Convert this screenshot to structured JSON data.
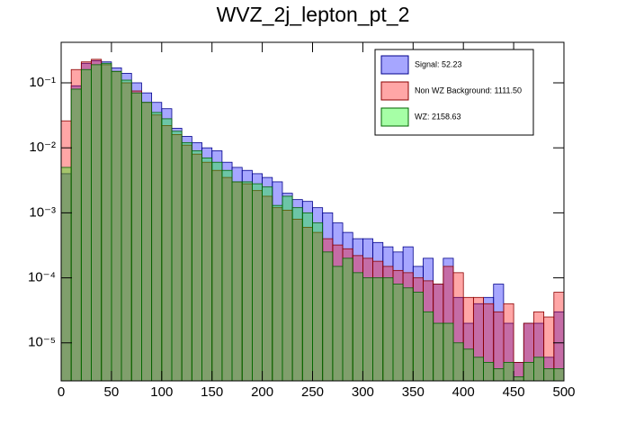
{
  "chart_data": {
    "type": "histogram",
    "title": "WVZ_2j_lepton_pt_2",
    "bins": [
      0,
      10,
      20,
      30,
      40,
      50,
      60,
      70,
      80,
      90,
      100,
      110,
      120,
      130,
      140,
      150,
      160,
      170,
      180,
      190,
      200,
      210,
      220,
      230,
      240,
      250,
      260,
      270,
      280,
      290,
      300,
      310,
      320,
      330,
      340,
      350,
      360,
      370,
      380,
      390,
      400,
      410,
      420,
      430,
      440,
      450,
      460,
      470,
      480,
      490,
      500
    ],
    "log_y": true,
    "xlim": [
      0,
      500
    ],
    "xticks": [
      0,
      50,
      100,
      150,
      200,
      250,
      300,
      350,
      400,
      450,
      500
    ],
    "ylim": [
      2.6e-06,
      0.42
    ],
    "yticks": [
      {
        "value": 1e-05,
        "label": "10⁻⁵"
      },
      {
        "value": 0.0001,
        "label": "10⁻⁴"
      },
      {
        "value": 0.001,
        "label": "10⁻³"
      },
      {
        "value": 0.01,
        "label": "10⁻²"
      },
      {
        "value": 0.1,
        "label": "10⁻¹"
      }
    ],
    "legend": "top-right",
    "series": [
      {
        "name": "Signal: 52.23",
        "color": "#0000ff",
        "values": [
          0.004,
          0.09,
          0.2,
          0.22,
          0.21,
          0.17,
          0.14,
          0.1,
          0.07,
          0.05,
          0.04,
          0.02,
          0.015,
          0.012,
          0.01,
          0.009,
          0.006,
          0.005,
          0.0045,
          0.004,
          0.0035,
          0.003,
          0.002,
          0.0016,
          0.0015,
          0.0012,
          0.001,
          0.0007,
          0.0005,
          0.0004,
          0.0004,
          0.00035,
          0.0003,
          0.00025,
          0.0003,
          0.00015,
          0.0002,
          8e-05,
          0.0002,
          5e-05,
          2e-05,
          4e-05,
          5e-05,
          8e-05,
          2e-05,
          5e-06,
          2e-05,
          2e-05,
          6e-06,
          3e-05
        ]
      },
      {
        "name": "Non WZ Background: 1111.50",
        "color": "#ff0000",
        "values": [
          0.026,
          0.16,
          0.21,
          0.23,
          0.19,
          0.15,
          0.1,
          0.075,
          0.05,
          0.032,
          0.022,
          0.016,
          0.011,
          0.008,
          0.006,
          0.0045,
          0.0035,
          0.003,
          0.0028,
          0.0022,
          0.0018,
          0.0012,
          0.0011,
          0.0008,
          0.0006,
          0.0005,
          0.0004,
          0.00032,
          0.00028,
          0.00022,
          0.0002,
          0.00018,
          0.00015,
          0.00013,
          0.00012,
          0.0001,
          9e-05,
          8e-05,
          0.00015,
          0.00012,
          5e-05,
          5e-05,
          4e-05,
          3e-05,
          4e-05,
          5e-06,
          2e-05,
          3e-05,
          2.5e-05,
          6e-05
        ]
      },
      {
        "name": "WZ: 2158.63",
        "color": "#00ff00",
        "values": [
          0.005,
          0.08,
          0.16,
          0.19,
          0.2,
          0.15,
          0.11,
          0.07,
          0.05,
          0.035,
          0.028,
          0.018,
          0.012,
          0.009,
          0.007,
          0.006,
          0.0045,
          0.003,
          0.003,
          0.0028,
          0.0025,
          0.0013,
          0.0018,
          0.0012,
          0.001,
          0.0007,
          0.00025,
          0.00015,
          0.0002,
          0.00012,
          0.0001,
          0.0001,
          0.0001,
          8e-05,
          7e-05,
          6e-05,
          3e-05,
          2e-05,
          2e-05,
          1e-05,
          8e-06,
          6e-06,
          5e-06,
          4e-06,
          5e-06,
          3e-06,
          5e-06,
          6e-06,
          4e-06,
          4e-06
        ]
      }
    ]
  }
}
